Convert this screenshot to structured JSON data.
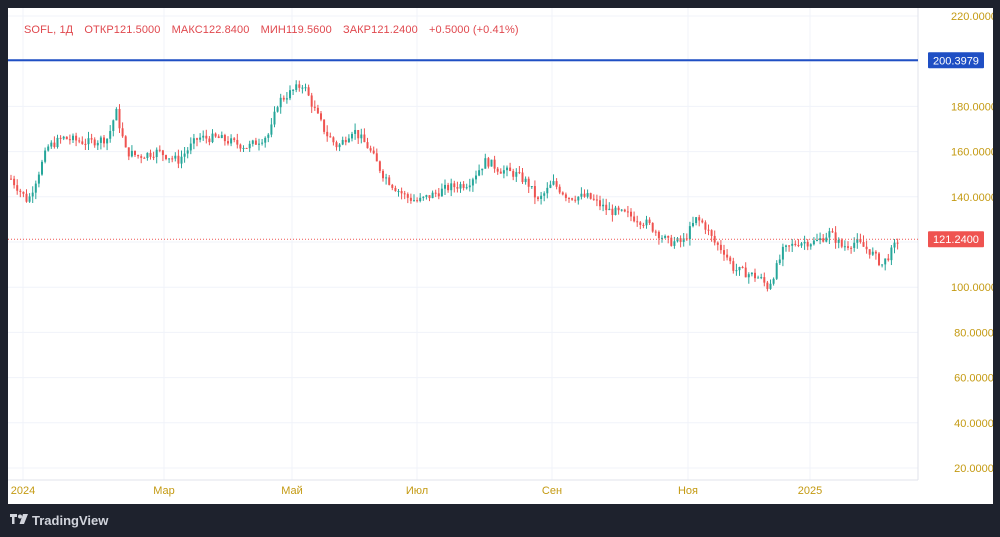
{
  "header": {
    "symbol": "SOFL, 1Д",
    "open_label": "ОТКР",
    "open": "121.5000",
    "high_label": "МАКС",
    "high": "122.8400",
    "low_label": "МИН",
    "low": "119.5600",
    "close_label": "ЗАКР",
    "close": "121.2400",
    "change": "+0.5000 (+0.41%)"
  },
  "footer": {
    "brand": "TradingView"
  },
  "colors": {
    "up": "#26a69a",
    "down": "#ef5350",
    "level_line": "#1f4fc4",
    "price_line": "#ef5350",
    "axis_text": "#c49a12",
    "background": "#1e222d"
  },
  "chart_data": {
    "type": "candlestick",
    "y_axis_ticks": [
      "220.0000",
      "180.0000",
      "160.0000",
      "140.0000",
      "100.0000",
      "80.0000",
      "60.0000",
      "40.0000",
      "20.0000"
    ],
    "ylim": [
      15,
      225
    ],
    "x_axis_ticks": [
      "2024",
      "Мар",
      "Май",
      "Июл",
      "Сен",
      "Ноя",
      "2025"
    ],
    "horizontal_line": {
      "value": 200.3979,
      "label": "200.3979"
    },
    "last_price": {
      "value": 121.24,
      "label": "121.2400"
    },
    "x_range": [
      "2024-01",
      "2025-02"
    ],
    "series": [
      {
        "values": [
          [
            "2024-01",
            148
          ],
          [
            "2024-02",
            166
          ],
          [
            "2024-03",
            160
          ],
          [
            "2024-04",
            168
          ],
          [
            "2024-05",
            185
          ],
          [
            "2024-05-15",
            168
          ],
          [
            "2024-06",
            160
          ],
          [
            "2024-07",
            140
          ],
          [
            "2024-08",
            152
          ],
          [
            "2024-09",
            140
          ],
          [
            "2024-10",
            132
          ],
          [
            "2024-11",
            122
          ],
          [
            "2024-12",
            104
          ],
          [
            "2025-01",
            122
          ],
          [
            "2025-02",
            115
          ],
          [
            "2025-02-20",
            121.24
          ]
        ]
      }
    ]
  }
}
